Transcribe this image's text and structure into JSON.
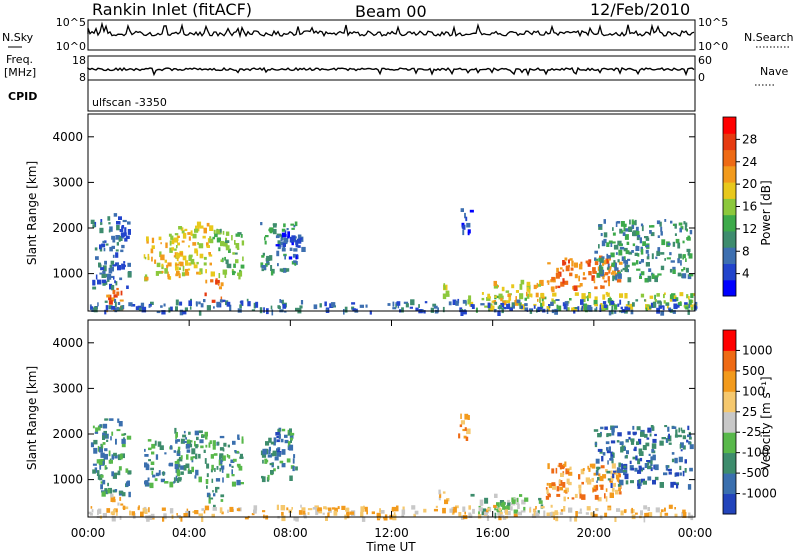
{
  "header": {
    "station": "Rankin Inlet (fitACF)",
    "beam": "Beam 00",
    "date": "12/Feb/2010"
  },
  "top_panels": {
    "nsky_label": "N.Sky",
    "nsky_ticks": [
      "10^5",
      "10^0"
    ],
    "nsearch_label": "N.Search",
    "nsearch_ticks": [
      "10^5",
      "10^0"
    ],
    "freq_label": "Freq.",
    "freq_unit": "[MHz]",
    "freq_ticks": [
      "18",
      "8"
    ],
    "nave_label": "Nave",
    "nave_ticks": [
      "60",
      "0"
    ],
    "cpid_label": "CPID",
    "cpid_value": "ulfscan -3350"
  },
  "chart_data": [
    {
      "type": "heatmap",
      "panel": "power",
      "ylabel": "Slant Range [km]",
      "yticks": [
        "4000",
        "3000",
        "2000",
        "1000"
      ],
      "ylim": [
        180,
        4500
      ],
      "xlim": [
        0,
        24
      ],
      "xlabel": "Time UT",
      "colorbar": {
        "label": "Power [dB]",
        "ticks": [
          "28",
          "24",
          "20",
          "16",
          "12",
          "8",
          "4"
        ],
        "range": [
          0,
          32
        ],
        "colors": [
          "#0000ff",
          "#2244cc",
          "#3d6fb0",
          "#3e8c6e",
          "#3daa4a",
          "#8cc83c",
          "#e8c81c",
          "#f29a1c",
          "#ee6a14",
          "#e63a10",
          "#ff0000"
        ]
      },
      "regions": [
        {
          "t": [
            0.1,
            1.6
          ],
          "r": [
            700,
            2350
          ],
          "level": 7
        },
        {
          "t": [
            0.7,
            1.4
          ],
          "r": [
            200,
            700
          ],
          "level": 25
        },
        {
          "t": [
            2.2,
            3.6
          ],
          "r": [
            900,
            1900
          ],
          "level": 20
        },
        {
          "t": [
            3.4,
            4.9
          ],
          "r": [
            1000,
            2150
          ],
          "level": 19
        },
        {
          "t": [
            4.6,
            5.3
          ],
          "r": [
            400,
            900
          ],
          "level": 24
        },
        {
          "t": [
            4.9,
            6.1
          ],
          "r": [
            900,
            2000
          ],
          "level": 14
        },
        {
          "t": [
            6.8,
            8.2
          ],
          "r": [
            1050,
            2150
          ],
          "level": 11
        },
        {
          "t": [
            7.4,
            8.5
          ],
          "r": [
            1300,
            2000
          ],
          "level": 5
        },
        {
          "t": [
            13.8,
            14.2
          ],
          "r": [
            550,
            800
          ],
          "level": 18
        },
        {
          "t": [
            14.6,
            15.1
          ],
          "r": [
            1900,
            2450
          ],
          "level": 4
        },
        {
          "t": [
            15.0,
            24.0
          ],
          "r": [
            250,
            600
          ],
          "level": 15
        },
        {
          "t": [
            16.0,
            18.0
          ],
          "r": [
            400,
            900
          ],
          "level": 20
        },
        {
          "t": [
            18.0,
            21.0
          ],
          "r": [
            700,
            1400
          ],
          "level": 26
        },
        {
          "t": [
            20.0,
            23.8
          ],
          "r": [
            900,
            2200
          ],
          "level": 10
        },
        {
          "t": [
            0.0,
            24.0
          ],
          "r": [
            180,
            450
          ],
          "level": 6
        }
      ]
    },
    {
      "type": "heatmap",
      "panel": "velocity",
      "ylabel": "Slant Range [km]",
      "yticks": [
        "4000",
        "3000",
        "2000",
        "1000"
      ],
      "ylim": [
        180,
        4500
      ],
      "xlim": [
        0,
        24
      ],
      "xlabel": "Time UT",
      "xticks": [
        "00:00",
        "04:00",
        "08:00",
        "12:00",
        "16:00",
        "20:00",
        "00:00"
      ],
      "colorbar": {
        "label": "Velocity [m s⁻¹]",
        "ticks": [
          "1000",
          "500",
          "100",
          "25",
          "-25",
          "-100",
          "-500",
          "-1000"
        ],
        "colors": [
          "#2244bb",
          "#3a6fae",
          "#3d8c6c",
          "#58b84a",
          "#c8c8c8",
          "#f5c86e",
          "#f29a1c",
          "#ee6a14",
          "#ff0000"
        ]
      },
      "regions": [
        {
          "t": [
            0.1,
            1.6
          ],
          "r": [
            700,
            2350
          ],
          "level": 2
        },
        {
          "t": [
            0.7,
            1.4
          ],
          "r": [
            200,
            700
          ],
          "level": 5
        },
        {
          "t": [
            2.2,
            3.6
          ],
          "r": [
            900,
            1900
          ],
          "level": 2
        },
        {
          "t": [
            3.4,
            4.9
          ],
          "r": [
            1000,
            2150
          ],
          "level": 2
        },
        {
          "t": [
            4.6,
            5.3
          ],
          "r": [
            400,
            900
          ],
          "level": 2
        },
        {
          "t": [
            4.9,
            6.1
          ],
          "r": [
            900,
            2000
          ],
          "level": 2
        },
        {
          "t": [
            6.8,
            8.2
          ],
          "r": [
            1050,
            2150
          ],
          "level": 2
        },
        {
          "t": [
            7.4,
            7.8
          ],
          "r": [
            1500,
            2100
          ],
          "level": 0
        },
        {
          "t": [
            13.8,
            14.2
          ],
          "r": [
            550,
            800
          ],
          "level": 5
        },
        {
          "t": [
            14.6,
            15.1
          ],
          "r": [
            1900,
            2450
          ],
          "level": 6
        },
        {
          "t": [
            15.0,
            18.0
          ],
          "r": [
            250,
            700
          ],
          "level": 3
        },
        {
          "t": [
            18.0,
            21.0
          ],
          "r": [
            600,
            1400
          ],
          "level": 6
        },
        {
          "t": [
            20.0,
            23.8
          ],
          "r": [
            900,
            2200
          ],
          "level": 1
        },
        {
          "t": [
            0.0,
            24.0
          ],
          "r": [
            180,
            450
          ],
          "level": 5
        }
      ]
    }
  ]
}
